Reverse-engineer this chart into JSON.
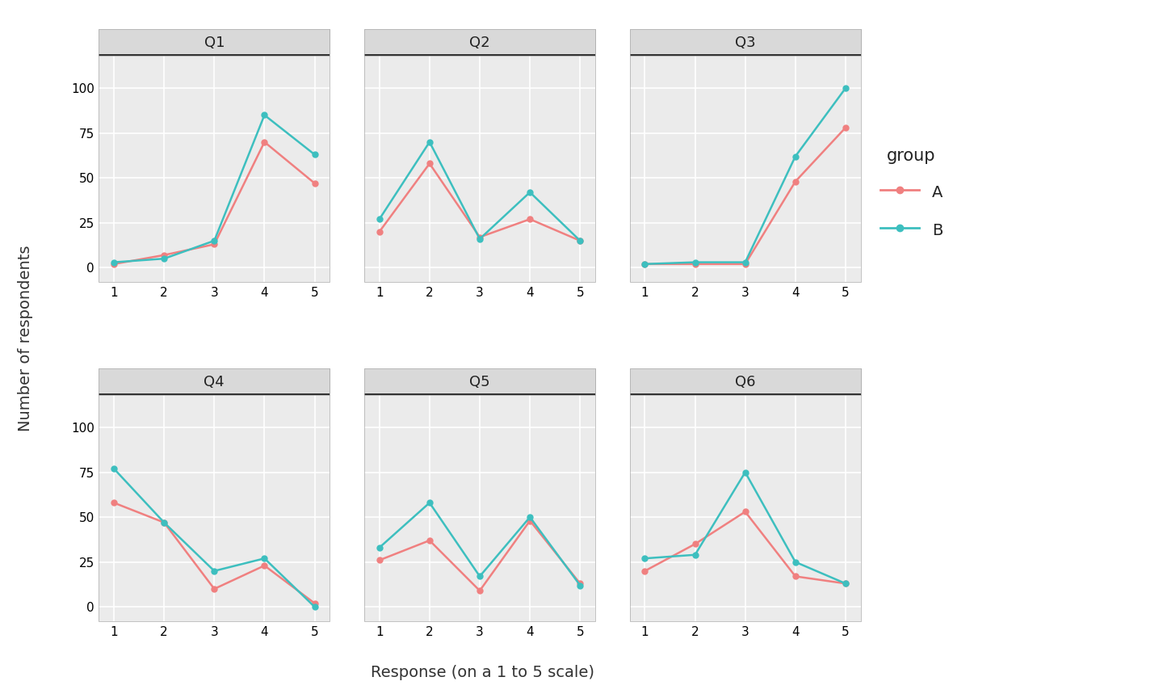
{
  "questions": [
    "Q1",
    "Q2",
    "Q3",
    "Q4",
    "Q5",
    "Q6"
  ],
  "x": [
    1,
    2,
    3,
    4,
    5
  ],
  "series": {
    "A": {
      "Q1": [
        2,
        7,
        13,
        70,
        47
      ],
      "Q2": [
        20,
        58,
        17,
        27,
        15
      ],
      "Q3": [
        2,
        2,
        2,
        48,
        78
      ],
      "Q4": [
        58,
        47,
        10,
        23,
        2
      ],
      "Q5": [
        26,
        37,
        9,
        48,
        13
      ],
      "Q6": [
        20,
        35,
        53,
        17,
        13
      ]
    },
    "B": {
      "Q1": [
        3,
        5,
        15,
        85,
        63
      ],
      "Q2": [
        27,
        70,
        16,
        42,
        15
      ],
      "Q3": [
        2,
        3,
        3,
        62,
        100
      ],
      "Q4": [
        77,
        47,
        20,
        27,
        0
      ],
      "Q5": [
        33,
        58,
        17,
        50,
        12
      ],
      "Q6": [
        27,
        29,
        75,
        25,
        13
      ]
    }
  },
  "color_A": "#F08080",
  "color_B": "#3DBFBF",
  "xlabel": "Response (on a 1 to 5 scale)",
  "ylabel": "Number of respondents",
  "legend_title": "group",
  "legend_labels": [
    "A",
    "B"
  ],
  "bg_panel": "#EBEBEB",
  "bg_fig": "#FFFFFF",
  "strip_bg": "#D9D9D9",
  "strip_text_color": "#222222",
  "grid_color": "#FFFFFF",
  "ylim": [
    -8,
    118
  ],
  "yticks": [
    0,
    25,
    50,
    75,
    100
  ],
  "xticks": [
    1,
    2,
    3,
    4,
    5
  ],
  "marker_size": 5,
  "line_width": 1.8,
  "strip_fontsize": 13,
  "axis_label_fontsize": 14,
  "tick_fontsize": 11,
  "legend_fontsize": 14,
  "legend_title_fontsize": 15
}
